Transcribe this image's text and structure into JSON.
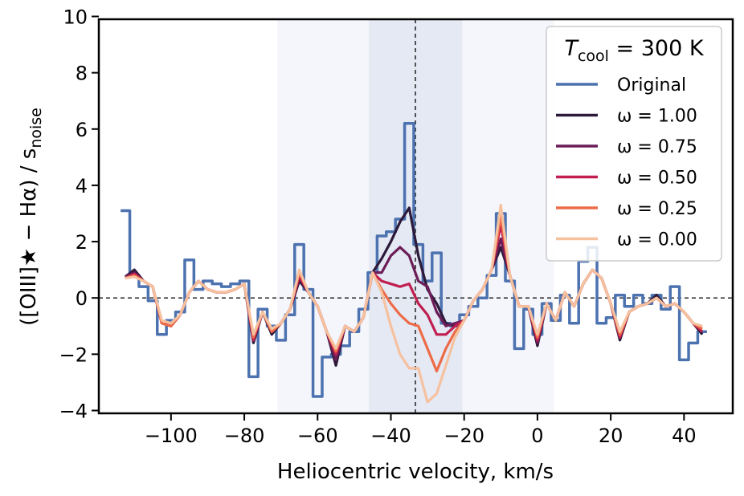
{
  "chart_data": {
    "type": "line",
    "xlabel": "Heliocentric velocity, km/s",
    "ylabel": "([OIII]★ − Hα) / s",
    "ylabel_sub": "noise",
    "legend_title": {
      "var": "T",
      "sub": "cool",
      "rest": " = 300 K"
    },
    "legend": "upper right",
    "xlim": [
      -119.7,
      53.3
    ],
    "ylim": [
      -4.1,
      9.9
    ],
    "xticks": [
      {
        "value": -100,
        "label": "−100"
      },
      {
        "value": -80,
        "label": "−80"
      },
      {
        "value": -60,
        "label": "−60"
      },
      {
        "value": -40,
        "label": "−40"
      },
      {
        "value": -20,
        "label": "−20"
      },
      0,
      20,
      40
    ],
    "yticks": [
      {
        "value": -4,
        "label": "−4"
      },
      {
        "value": -2,
        "label": "−2"
      },
      0,
      2,
      4,
      6,
      8,
      10
    ],
    "spans": [
      {
        "range": [
          -71,
          4.5
        ],
        "color": "#f4f6fb"
      },
      {
        "range": [
          -46,
          -20.5
        ],
        "color": "#e4e9f4"
      }
    ],
    "vline": -33.3,
    "hline": 0,
    "x": [
      -112.5,
      -110,
      -107.5,
      -105,
      -102.5,
      -100,
      -97.5,
      -95,
      -92.5,
      -90,
      -87.5,
      -85,
      -82.5,
      -80,
      -77.5,
      -75,
      -72.5,
      -70,
      -67.5,
      -65,
      -62.5,
      -60,
      -57.5,
      -55,
      -52.5,
      -50,
      -47.5,
      -45,
      -42.5,
      -40,
      -37.5,
      -35,
      -32.5,
      -30,
      -27.5,
      -25,
      -22.5,
      -20,
      -17.5,
      -15,
      -12.5,
      -10,
      -7.5,
      -5,
      -2.5,
      0,
      2.5,
      5,
      7.5,
      10,
      12.5,
      15,
      17.5,
      20,
      22.5,
      25,
      27.5,
      30,
      32.5,
      35,
      37.5,
      40,
      42.5,
      45
    ],
    "series": [
      {
        "name": "Original",
        "color": "#4c72b0",
        "step": true,
        "values": [
          3.1,
          0.8,
          0.4,
          -0.1,
          -1.3,
          -0.8,
          -0.5,
          1.35,
          0.3,
          0.6,
          0.5,
          0.4,
          0.5,
          0.6,
          -2.8,
          -0.4,
          -1.0,
          -1.5,
          -0.6,
          1.9,
          0.3,
          -3.5,
          -2.1,
          -2.0,
          -1.7,
          -1.2,
          -0.4,
          0.9,
          2.2,
          2.35,
          2.8,
          6.2,
          1.9,
          0.6,
          1.6,
          -0.9,
          -1.0,
          -0.6,
          -0.3,
          0.0,
          0.8,
          3.0,
          0.6,
          -1.8,
          -0.4,
          -1.3,
          -0.2,
          -0.8,
          0.1,
          -0.9,
          1.3,
          1.8,
          -0.9,
          -0.7,
          0.1,
          -0.3,
          0.1,
          -0.2,
          0.1,
          -0.4,
          0.4,
          -2.2,
          -1.6,
          -1.2
        ]
      },
      {
        "name": "ω = 1.00",
        "color": "#2d1a3a",
        "values": [
          0.75,
          1.0,
          0.6,
          0.4,
          -0.9,
          -1.0,
          -0.6,
          0.2,
          0.6,
          0.3,
          0.2,
          0.2,
          0.3,
          0.5,
          -1.6,
          -0.5,
          -1.3,
          -0.9,
          -0.4,
          0.6,
          0.2,
          -0.3,
          -1.2,
          -2.4,
          -1.0,
          -1.2,
          -0.7,
          0.9,
          1.4,
          2.0,
          2.7,
          3.2,
          1.5,
          0.3,
          -0.2,
          -0.9,
          -1.0,
          -0.8,
          -0.1,
          0.3,
          1.0,
          1.8,
          0.8,
          -0.3,
          -0.3,
          -1.7,
          -0.2,
          -0.8,
          0.2,
          -0.3,
          0.5,
          1.0,
          0.7,
          -0.2,
          -1.5,
          -0.5,
          -0.3,
          -0.2,
          0.1,
          -0.3,
          -0.2,
          -0.5,
          -0.9,
          -1.3
        ]
      },
      {
        "name": "ω = 0.75",
        "color": "#6c1d58",
        "values": [
          0.75,
          0.9,
          0.6,
          0.4,
          -0.9,
          -1.0,
          -0.6,
          0.2,
          0.6,
          0.3,
          0.2,
          0.2,
          0.3,
          0.5,
          -1.5,
          -0.5,
          -1.2,
          -0.9,
          -0.4,
          0.7,
          0.2,
          -0.3,
          -1.2,
          -2.2,
          -1.0,
          -1.2,
          -0.7,
          0.9,
          0.9,
          1.5,
          1.8,
          1.5,
          0.6,
          0.4,
          -0.5,
          -1.0,
          -0.9,
          -0.8,
          -0.1,
          0.3,
          1.0,
          2.1,
          0.8,
          -0.3,
          -0.3,
          -1.6,
          -0.2,
          -0.8,
          0.2,
          -0.3,
          0.5,
          1.0,
          0.7,
          -0.2,
          -1.4,
          -0.5,
          -0.3,
          -0.2,
          0.0,
          -0.3,
          -0.2,
          -0.5,
          -0.9,
          -1.2
        ]
      },
      {
        "name": "ω = 0.50",
        "color": "#c01f50",
        "values": [
          0.7,
          0.85,
          0.6,
          0.4,
          -0.9,
          -1.0,
          -0.6,
          0.2,
          0.6,
          0.3,
          0.2,
          0.2,
          0.3,
          0.5,
          -1.5,
          -0.5,
          -1.2,
          -0.9,
          -0.4,
          0.8,
          0.2,
          -0.3,
          -1.2,
          -2.0,
          -1.0,
          -1.2,
          -0.7,
          0.9,
          0.6,
          0.5,
          0.4,
          0.5,
          -0.2,
          -0.6,
          -1.3,
          -1.3,
          -1.0,
          -0.8,
          -0.1,
          0.3,
          1.0,
          2.6,
          0.8,
          -0.3,
          -0.3,
          -1.5,
          -0.2,
          -0.8,
          0.2,
          -0.3,
          0.5,
          1.0,
          0.7,
          -0.2,
          -1.4,
          -0.5,
          -0.3,
          -0.2,
          0.0,
          -0.3,
          -0.2,
          -0.5,
          -0.9,
          -1.2
        ]
      },
      {
        "name": "ω = 0.25",
        "color": "#ee6b47",
        "values": [
          0.7,
          0.8,
          0.6,
          0.4,
          -0.9,
          -1.0,
          -0.6,
          0.2,
          0.6,
          0.3,
          0.2,
          0.2,
          0.3,
          0.5,
          -1.4,
          -0.5,
          -1.2,
          -0.9,
          -0.4,
          0.9,
          0.2,
          -0.3,
          -1.2,
          -1.9,
          -1.0,
          -1.2,
          -0.7,
          0.9,
          0.3,
          -0.2,
          -0.6,
          -0.9,
          -1.0,
          -1.8,
          -2.6,
          -1.8,
          -1.2,
          -0.8,
          -0.1,
          0.3,
          1.0,
          2.9,
          0.8,
          -0.3,
          -0.3,
          -1.4,
          -0.2,
          -0.8,
          0.2,
          -0.3,
          0.5,
          1.0,
          0.7,
          -0.2,
          -1.3,
          -0.5,
          -0.3,
          -0.2,
          0.0,
          -0.3,
          -0.2,
          -0.5,
          -0.9,
          -1.1
        ]
      },
      {
        "name": "ω = 0.00",
        "color": "#f6c19f",
        "values": [
          0.7,
          0.75,
          0.6,
          0.4,
          -0.8,
          -0.9,
          -0.6,
          0.2,
          0.6,
          0.3,
          0.2,
          0.2,
          0.3,
          0.5,
          -1.3,
          -0.5,
          -1.1,
          -0.9,
          -0.4,
          1.0,
          0.2,
          -0.3,
          -1.2,
          -1.8,
          -1.0,
          -1.2,
          -0.7,
          0.9,
          0.2,
          -1.0,
          -2.0,
          -2.5,
          -2.5,
          -3.7,
          -3.4,
          -2.4,
          -1.4,
          -0.8,
          -0.1,
          0.3,
          1.0,
          3.3,
          0.8,
          -0.3,
          -0.3,
          -1.3,
          -0.2,
          -0.8,
          0.2,
          -0.3,
          0.5,
          1.0,
          0.7,
          -0.2,
          -1.2,
          -0.5,
          -0.3,
          -0.2,
          0.0,
          -0.3,
          -0.2,
          -0.5,
          -0.9,
          -1.0
        ]
      }
    ]
  }
}
